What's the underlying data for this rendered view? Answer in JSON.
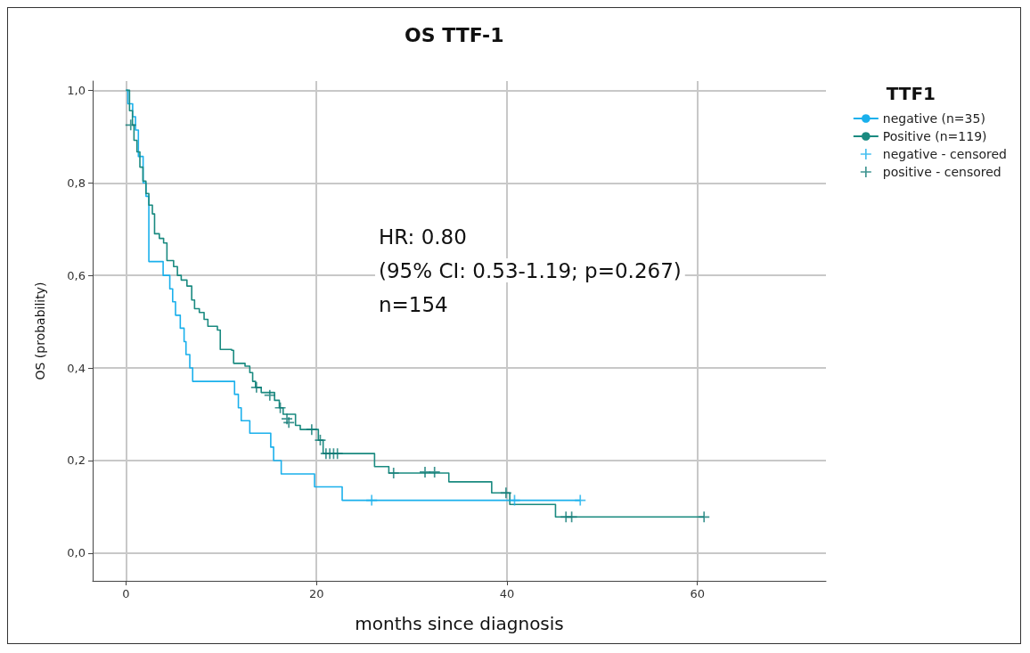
{
  "chart_data": {
    "type": "step",
    "title": "OS TTF-1",
    "xlabel": "months since diagnosis",
    "ylabel": "OS (probability)",
    "legend_title": "TTF1",
    "annotations": [
      "HR: 0.80",
      "(95% CI: 0.53-1.19; p=0.267)",
      "n=154"
    ],
    "xlim": [
      -3.5,
      73.5
    ],
    "xticks": [
      0,
      20,
      40,
      60
    ],
    "ylim": [
      -0.06,
      1.02
    ],
    "yticks": [
      {
        "value": 0,
        "label": "0,0"
      },
      {
        "value": 0.2,
        "label": "0,2"
      },
      {
        "value": 0.4,
        "label": "0,4"
      },
      {
        "value": 0.6,
        "label": "0,6"
      },
      {
        "value": 0.8,
        "label": "0,8"
      },
      {
        "value": 1.0,
        "label": "1,0"
      }
    ],
    "grid": true,
    "legend": "top right",
    "series": [
      {
        "name": "negative (n=35)",
        "color": "#1ab0ec",
        "x": [
          0,
          0.2,
          0.7,
          1.0,
          1.3,
          1.8,
          2.1,
          2.4,
          3.9,
          4.6,
          4.9,
          5.2,
          5.7,
          6.1,
          6.3,
          6.7,
          7.0,
          11.4,
          11.8,
          12.1,
          13.0,
          15.2,
          15.5,
          16.3,
          19.8,
          22.7,
          47.7
        ],
        "values": [
          1.0,
          0.971,
          0.943,
          0.914,
          0.857,
          0.8,
          0.771,
          0.63,
          0.6,
          0.571,
          0.543,
          0.514,
          0.486,
          0.457,
          0.429,
          0.4,
          0.371,
          0.343,
          0.314,
          0.286,
          0.259,
          0.229,
          0.2,
          0.171,
          0.143,
          0.114,
          0.114
        ]
      },
      {
        "name": "Positive (n=119)",
        "color": "#1a8a80",
        "x": [
          0,
          0.37,
          0.68,
          0.84,
          1.15,
          1.46,
          1.78,
          2.09,
          2.4,
          2.77,
          3.0,
          3.5,
          3.95,
          4.3,
          5.0,
          5.4,
          5.8,
          6.4,
          6.9,
          7.2,
          7.7,
          8.2,
          8.6,
          9.6,
          9.9,
          11.1,
          11.3,
          12.5,
          13.0,
          13.3,
          13.6,
          14.2,
          15.6,
          16.1,
          16.5,
          17.8,
          18.3,
          20.2,
          20.7,
          26.1,
          27.6,
          33.9,
          38.4,
          40.3,
          45.1,
          60.7
        ],
        "values": [
          1.0,
          0.956,
          0.925,
          0.892,
          0.867,
          0.834,
          0.804,
          0.777,
          0.752,
          0.733,
          0.69,
          0.68,
          0.67,
          0.632,
          0.619,
          0.6,
          0.59,
          0.577,
          0.547,
          0.528,
          0.52,
          0.505,
          0.49,
          0.482,
          0.44,
          0.438,
          0.41,
          0.404,
          0.39,
          0.371,
          0.358,
          0.347,
          0.33,
          0.314,
          0.3,
          0.276,
          0.267,
          0.244,
          0.215,
          0.187,
          0.173,
          0.154,
          0.13,
          0.105,
          0.078,
          0.078
        ]
      },
      {
        "name": "negative - censored",
        "type": "scatter",
        "marker": "cross",
        "color": "#1ab0ec",
        "x": [
          25.8,
          40.8,
          47.7
        ],
        "values": [
          0.114,
          0.114,
          0.114
        ]
      },
      {
        "name": "positive - censored",
        "type": "scatter",
        "marker": "cross",
        "color": "#0f7a76",
        "x": [
          0.5,
          13.7,
          15.1,
          16.2,
          16.9,
          17.1,
          19.5,
          20.4,
          21.0,
          21.4,
          21.8,
          22.2,
          28.1,
          31.4,
          32.4,
          39.9,
          46.2,
          46.8,
          60.7
        ],
        "values": [
          0.925,
          0.358,
          0.341,
          0.314,
          0.29,
          0.282,
          0.267,
          0.244,
          0.215,
          0.215,
          0.215,
          0.215,
          0.173,
          0.175,
          0.175,
          0.13,
          0.078,
          0.078,
          0.078
        ]
      }
    ]
  }
}
